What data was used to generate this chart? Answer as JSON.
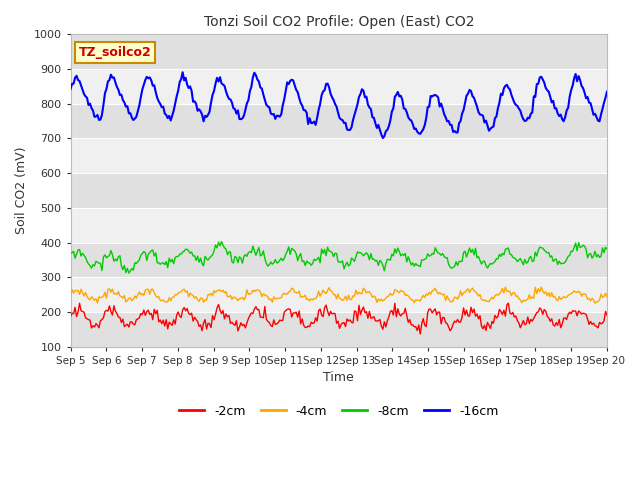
{
  "title": "Tonzi Soil CO2 Profile: Open (East) CO2",
  "ylabel": "Soil CO2 (mV)",
  "xlabel": "Time",
  "ylim": [
    100,
    1000
  ],
  "yticks": [
    100,
    200,
    300,
    400,
    500,
    600,
    700,
    800,
    900,
    1000
  ],
  "legend_label": "TZ_soilco2",
  "legend_entries": [
    "-2cm",
    "-4cm",
    "-8cm",
    "-16cm"
  ],
  "legend_colors": [
    "#ff0000",
    "#ffa500",
    "#00cc00",
    "#0000ff"
  ],
  "x_tick_labels": [
    "Sep 5",
    "Sep 6",
    "Sep 7",
    "Sep 8",
    "Sep 9",
    "Sep 10",
    "Sep 11",
    "Sep 12",
    "Sep 13",
    "Sep 14",
    "Sep 15",
    "Sep 16",
    "Sep 17",
    "Sep 18",
    "Sep 19",
    "Sep 20"
  ],
  "fig_bg": "#ffffff",
  "plot_bg_light": "#f0f0f0",
  "plot_bg_dark": "#e0e0e0",
  "grid_color": "#ffffff",
  "series_16cm": {
    "base": 815,
    "amp": 55,
    "noise": 6,
    "seed": 10
  },
  "series_8cm": {
    "base": 355,
    "amp": 20,
    "noise": 8,
    "seed": 20
  },
  "series_4cm": {
    "base": 248,
    "amp": 13,
    "noise": 5,
    "seed": 30
  },
  "series_2cm": {
    "base": 183,
    "amp": 22,
    "noise": 10,
    "seed": 40
  }
}
